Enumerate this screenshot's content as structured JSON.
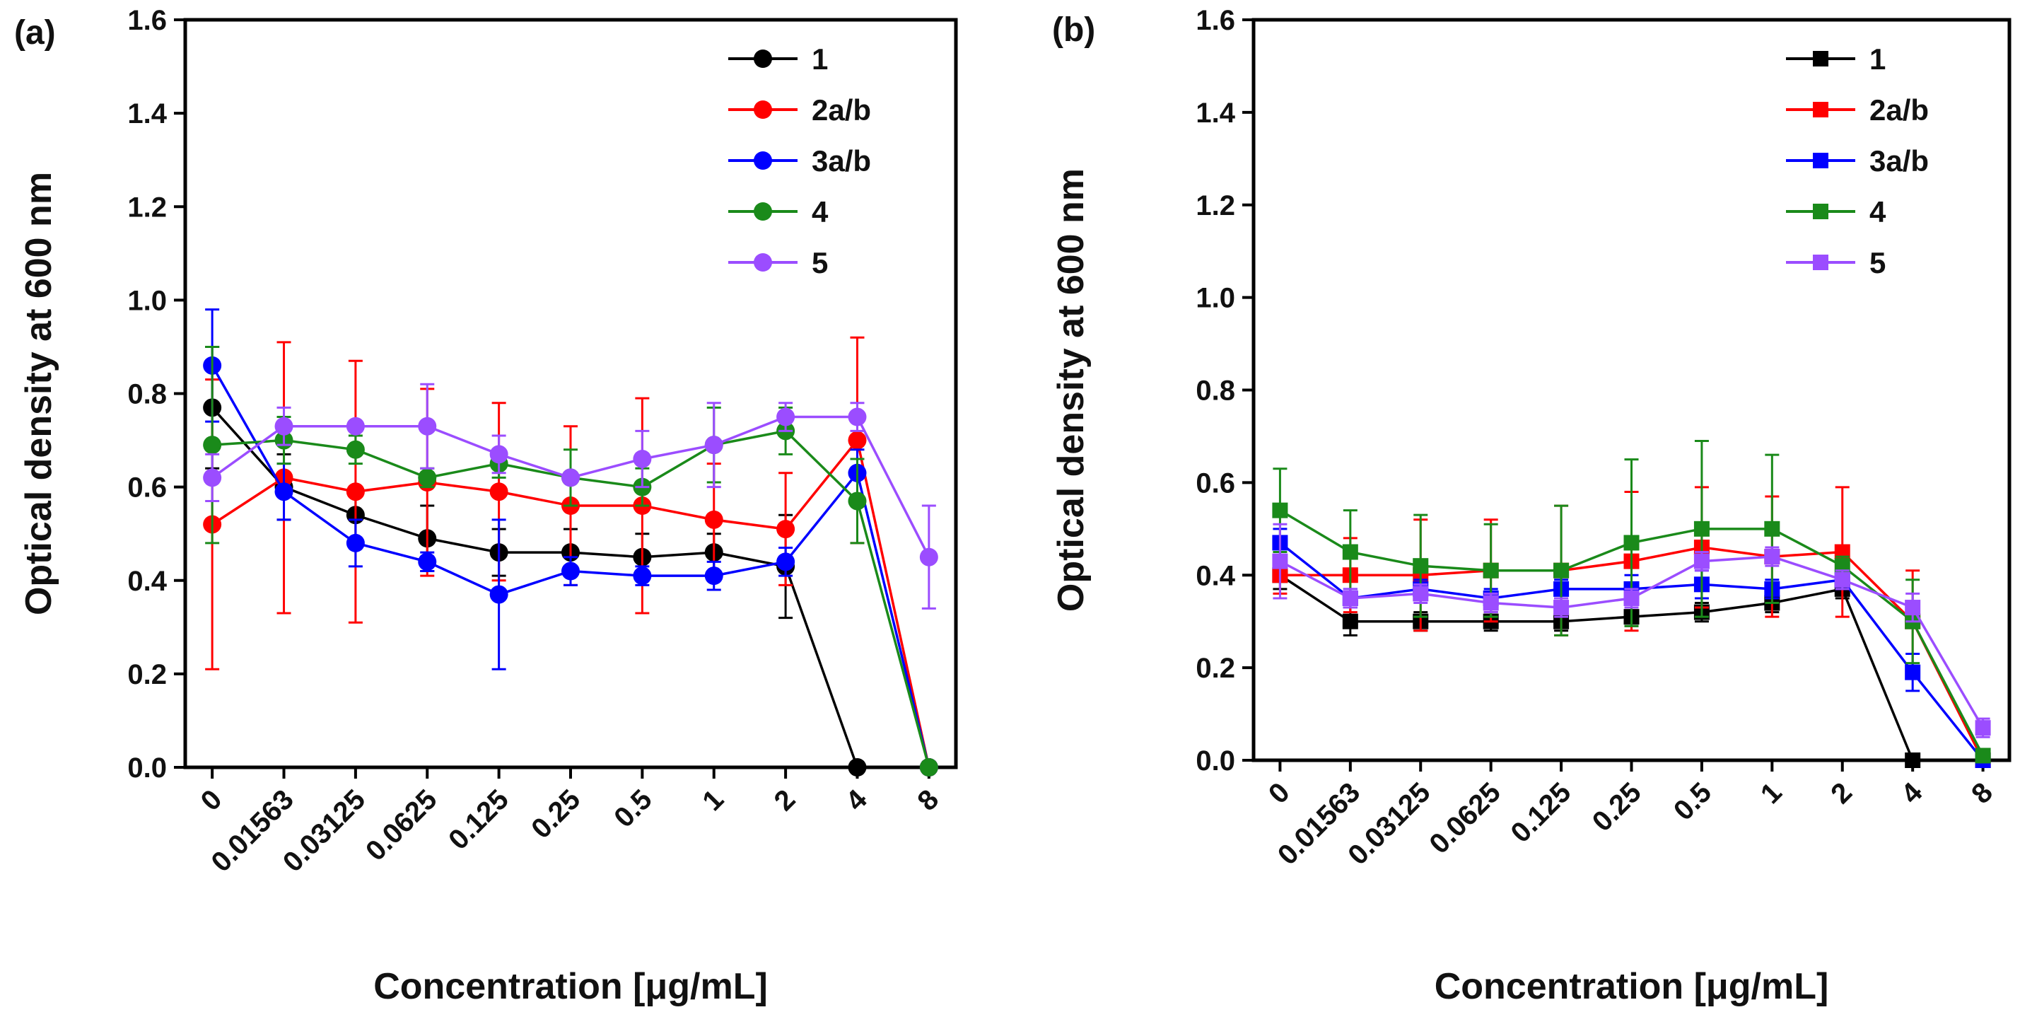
{
  "figure_title": "",
  "chart_data": [
    {
      "type": "line",
      "panel_label": "(a)",
      "marker": "circle",
      "title": "",
      "xlabel": "Concentration [μg/mL]",
      "ylabel": "Optical density at 600 nm",
      "categories": [
        "0",
        "0.01563",
        "0.03125",
        "0.0625",
        "0.125",
        "0.25",
        "0.5",
        "1",
        "2",
        "4",
        "8"
      ],
      "ylim": [
        0,
        1.6
      ],
      "yticks": [
        "0.0",
        "0.2",
        "0.4",
        "0.6",
        "0.8",
        "1.0",
        "1.2",
        "1.4",
        "1.6"
      ],
      "legend_position": "top-right",
      "series": [
        {
          "name": "1",
          "color": "#000000",
          "values": [
            0.77,
            0.6,
            0.54,
            0.49,
            0.46,
            0.46,
            0.45,
            0.46,
            0.43,
            0.0,
            0.0
          ],
          "errors": [
            0.13,
            0.07,
            0.05,
            0.07,
            0.05,
            0.05,
            0.05,
            0.04,
            0.11,
            0.0,
            0.0
          ]
        },
        {
          "name": "2a/b",
          "color": "#ff0000",
          "values": [
            0.52,
            0.62,
            0.59,
            0.61,
            0.59,
            0.56,
            0.56,
            0.53,
            0.51,
            0.7,
            0.0
          ],
          "errors": [
            0.31,
            0.29,
            0.28,
            0.2,
            0.19,
            0.17,
            0.23,
            0.12,
            0.12,
            0.22,
            0.0
          ]
        },
        {
          "name": "3a/b",
          "color": "#0000ff",
          "values": [
            0.86,
            0.59,
            0.48,
            0.44,
            0.37,
            0.42,
            0.41,
            0.41,
            0.44,
            0.63,
            0.0
          ],
          "errors": [
            0.12,
            0.06,
            0.05,
            0.02,
            0.16,
            0.03,
            0.02,
            0.03,
            0.03,
            0.05,
            0.0
          ]
        },
        {
          "name": "4",
          "color": "#1a8a1a",
          "values": [
            0.69,
            0.7,
            0.68,
            0.62,
            0.65,
            0.62,
            0.6,
            0.69,
            0.72,
            0.57,
            0.0
          ],
          "errors": [
            0.21,
            0.05,
            0.03,
            0.02,
            0.03,
            0.06,
            0.04,
            0.08,
            0.05,
            0.09,
            0.0
          ]
        },
        {
          "name": "5",
          "color": "#9b4dff",
          "values": [
            0.62,
            0.73,
            0.73,
            0.73,
            0.67,
            0.62,
            0.66,
            0.69,
            0.75,
            0.75,
            0.45
          ],
          "errors": [
            0.05,
            0.04,
            0.01,
            0.09,
            0.04,
            0.01,
            0.06,
            0.09,
            0.03,
            0.03,
            0.11
          ]
        }
      ]
    },
    {
      "type": "line",
      "panel_label": "(b)",
      "marker": "square",
      "title": "",
      "xlabel": "Concentration [μg/mL]",
      "ylabel": "Optical density at 600 nm",
      "categories": [
        "0",
        "0.01563",
        "0.03125",
        "0.0625",
        "0.125",
        "0.25",
        "0.5",
        "1",
        "2",
        "4",
        "8"
      ],
      "ylim": [
        0,
        1.6
      ],
      "yticks": [
        "0.0",
        "0.2",
        "0.4",
        "0.6",
        "0.8",
        "1.0",
        "1.2",
        "1.4",
        "1.6"
      ],
      "legend_position": "top-right",
      "series": [
        {
          "name": "1",
          "color": "#000000",
          "values": [
            0.4,
            0.3,
            0.3,
            0.3,
            0.3,
            0.31,
            0.32,
            0.34,
            0.37,
            0.0,
            0.0
          ],
          "errors": [
            0.03,
            0.03,
            0.02,
            0.02,
            0.02,
            0.02,
            0.02,
            0.02,
            0.02,
            0.0,
            0.0
          ]
        },
        {
          "name": "2a/b",
          "color": "#ff0000",
          "values": [
            0.4,
            0.4,
            0.4,
            0.41,
            0.41,
            0.43,
            0.46,
            0.44,
            0.45,
            0.3,
            0.0
          ],
          "errors": [
            0.04,
            0.08,
            0.12,
            0.11,
            0.14,
            0.15,
            0.13,
            0.13,
            0.14,
            0.11,
            0.0
          ]
        },
        {
          "name": "3a/b",
          "color": "#0000ff",
          "values": [
            0.47,
            0.35,
            0.37,
            0.35,
            0.37,
            0.37,
            0.38,
            0.37,
            0.39,
            0.19,
            0.0
          ],
          "errors": [
            0.03,
            0.02,
            0.02,
            0.02,
            0.02,
            0.03,
            0.03,
            0.02,
            0.02,
            0.04,
            0.0
          ]
        },
        {
          "name": "4",
          "color": "#1a8a1a",
          "values": [
            0.54,
            0.45,
            0.42,
            0.41,
            0.41,
            0.47,
            0.5,
            0.5,
            0.42,
            0.3,
            0.01
          ],
          "errors": [
            0.09,
            0.09,
            0.11,
            0.1,
            0.14,
            0.18,
            0.19,
            0.16,
            0.02,
            0.09,
            0.0
          ]
        },
        {
          "name": "5",
          "color": "#9b4dff",
          "values": [
            0.43,
            0.35,
            0.36,
            0.34,
            0.33,
            0.35,
            0.43,
            0.44,
            0.39,
            0.33,
            0.07
          ],
          "errors": [
            0.08,
            0.02,
            0.02,
            0.02,
            0.02,
            0.02,
            0.02,
            0.02,
            0.02,
            0.03,
            0.02
          ]
        }
      ]
    }
  ]
}
